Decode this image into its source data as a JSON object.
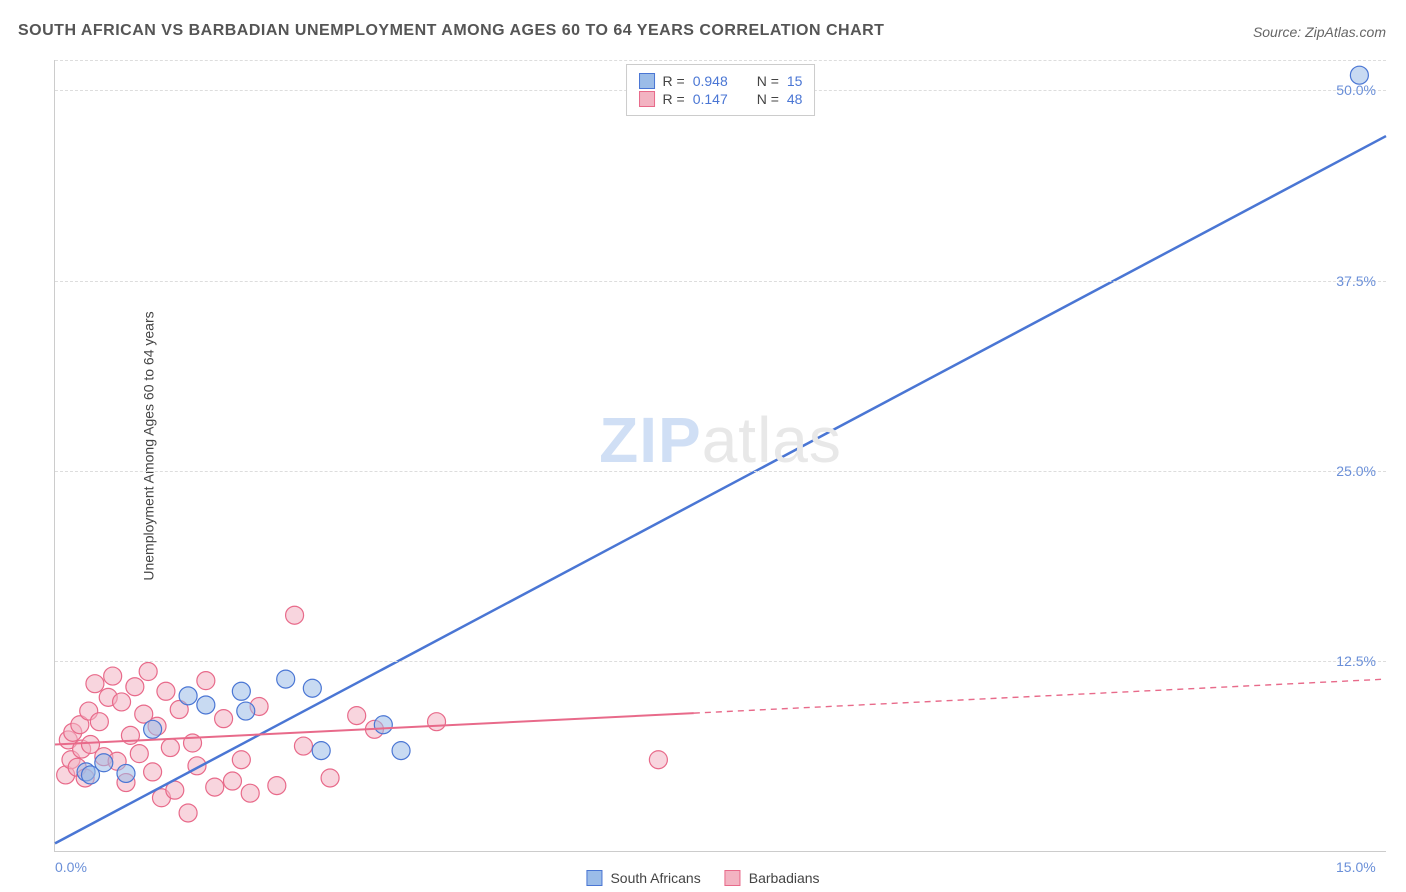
{
  "title": "SOUTH AFRICAN VS BARBADIAN UNEMPLOYMENT AMONG AGES 60 TO 64 YEARS CORRELATION CHART",
  "source": "Source: ZipAtlas.com",
  "ylabel": "Unemployment Among Ages 60 to 64 years",
  "watermark_bold": "ZIP",
  "watermark_light": "atlas",
  "chart": {
    "type": "scatter-correlation",
    "xlim": [
      0,
      15
    ],
    "ylim": [
      0,
      52
    ],
    "xticks": [
      {
        "v": 0,
        "label": "0.0%"
      },
      {
        "v": 15,
        "label": "15.0%"
      }
    ],
    "yticks": [
      {
        "v": 12.5,
        "label": "12.5%"
      },
      {
        "v": 25.0,
        "label": "25.0%"
      },
      {
        "v": 37.5,
        "label": "37.5%"
      },
      {
        "v": 50.0,
        "label": "50.0%"
      }
    ],
    "grid_color": "#dddddd",
    "background_color": "#ffffff",
    "marker_radius": 9,
    "marker_opacity": 0.55,
    "series": [
      {
        "name": "South Africans",
        "color_fill": "#9bbce8",
        "color_stroke": "#4a76d4",
        "R": "0.948",
        "N": "15",
        "trend": {
          "x1": 0,
          "y1": 0.5,
          "x2": 15,
          "y2": 47,
          "solid_until_x": 15,
          "stroke_width": 2.5
        },
        "points": [
          {
            "x": 0.35,
            "y": 5.2
          },
          {
            "x": 0.4,
            "y": 5.0
          },
          {
            "x": 0.55,
            "y": 5.8
          },
          {
            "x": 0.8,
            "y": 5.1
          },
          {
            "x": 1.1,
            "y": 8.0
          },
          {
            "x": 1.5,
            "y": 10.2
          },
          {
            "x": 1.7,
            "y": 9.6
          },
          {
            "x": 2.1,
            "y": 10.5
          },
          {
            "x": 2.15,
            "y": 9.2
          },
          {
            "x": 2.6,
            "y": 11.3
          },
          {
            "x": 2.9,
            "y": 10.7
          },
          {
            "x": 3.0,
            "y": 6.6
          },
          {
            "x": 3.7,
            "y": 8.3
          },
          {
            "x": 3.9,
            "y": 6.6
          },
          {
            "x": 14.7,
            "y": 51.0
          }
        ]
      },
      {
        "name": "Barbadians",
        "color_fill": "#f3b3c2",
        "color_stroke": "#e86a8a",
        "R": "0.147",
        "N": "48",
        "trend": {
          "x1": 0,
          "y1": 7.0,
          "x2": 15,
          "y2": 11.3,
          "solid_until_x": 7.2,
          "stroke_width": 2
        },
        "points": [
          {
            "x": 0.12,
            "y": 5.0
          },
          {
            "x": 0.15,
            "y": 7.3
          },
          {
            "x": 0.18,
            "y": 6.0
          },
          {
            "x": 0.2,
            "y": 7.8
          },
          {
            "x": 0.25,
            "y": 5.5
          },
          {
            "x": 0.28,
            "y": 8.3
          },
          {
            "x": 0.3,
            "y": 6.7
          },
          {
            "x": 0.34,
            "y": 4.8
          },
          {
            "x": 0.38,
            "y": 9.2
          },
          {
            "x": 0.4,
            "y": 7.0
          },
          {
            "x": 0.45,
            "y": 11.0
          },
          {
            "x": 0.5,
            "y": 8.5
          },
          {
            "x": 0.55,
            "y": 6.2
          },
          {
            "x": 0.6,
            "y": 10.1
          },
          {
            "x": 0.65,
            "y": 11.5
          },
          {
            "x": 0.7,
            "y": 5.9
          },
          {
            "x": 0.75,
            "y": 9.8
          },
          {
            "x": 0.8,
            "y": 4.5
          },
          {
            "x": 0.85,
            "y": 7.6
          },
          {
            "x": 0.9,
            "y": 10.8
          },
          {
            "x": 0.95,
            "y": 6.4
          },
          {
            "x": 1.0,
            "y": 9.0
          },
          {
            "x": 1.05,
            "y": 11.8
          },
          {
            "x": 1.1,
            "y": 5.2
          },
          {
            "x": 1.15,
            "y": 8.2
          },
          {
            "x": 1.2,
            "y": 3.5
          },
          {
            "x": 1.25,
            "y": 10.5
          },
          {
            "x": 1.3,
            "y": 6.8
          },
          {
            "x": 1.35,
            "y": 4.0
          },
          {
            "x": 1.4,
            "y": 9.3
          },
          {
            "x": 1.5,
            "y": 2.5
          },
          {
            "x": 1.55,
            "y": 7.1
          },
          {
            "x": 1.6,
            "y": 5.6
          },
          {
            "x": 1.7,
            "y": 11.2
          },
          {
            "x": 1.8,
            "y": 4.2
          },
          {
            "x": 1.9,
            "y": 8.7
          },
          {
            "x": 2.0,
            "y": 4.6
          },
          {
            "x": 2.1,
            "y": 6.0
          },
          {
            "x": 2.2,
            "y": 3.8
          },
          {
            "x": 2.3,
            "y": 9.5
          },
          {
            "x": 2.5,
            "y": 4.3
          },
          {
            "x": 2.7,
            "y": 15.5
          },
          {
            "x": 2.8,
            "y": 6.9
          },
          {
            "x": 3.1,
            "y": 4.8
          },
          {
            "x": 3.4,
            "y": 8.9
          },
          {
            "x": 3.6,
            "y": 8.0
          },
          {
            "x": 4.3,
            "y": 8.5
          },
          {
            "x": 6.8,
            "y": 6.0
          }
        ]
      }
    ]
  },
  "legend": {
    "r_label": "R =",
    "n_label": "N ="
  }
}
